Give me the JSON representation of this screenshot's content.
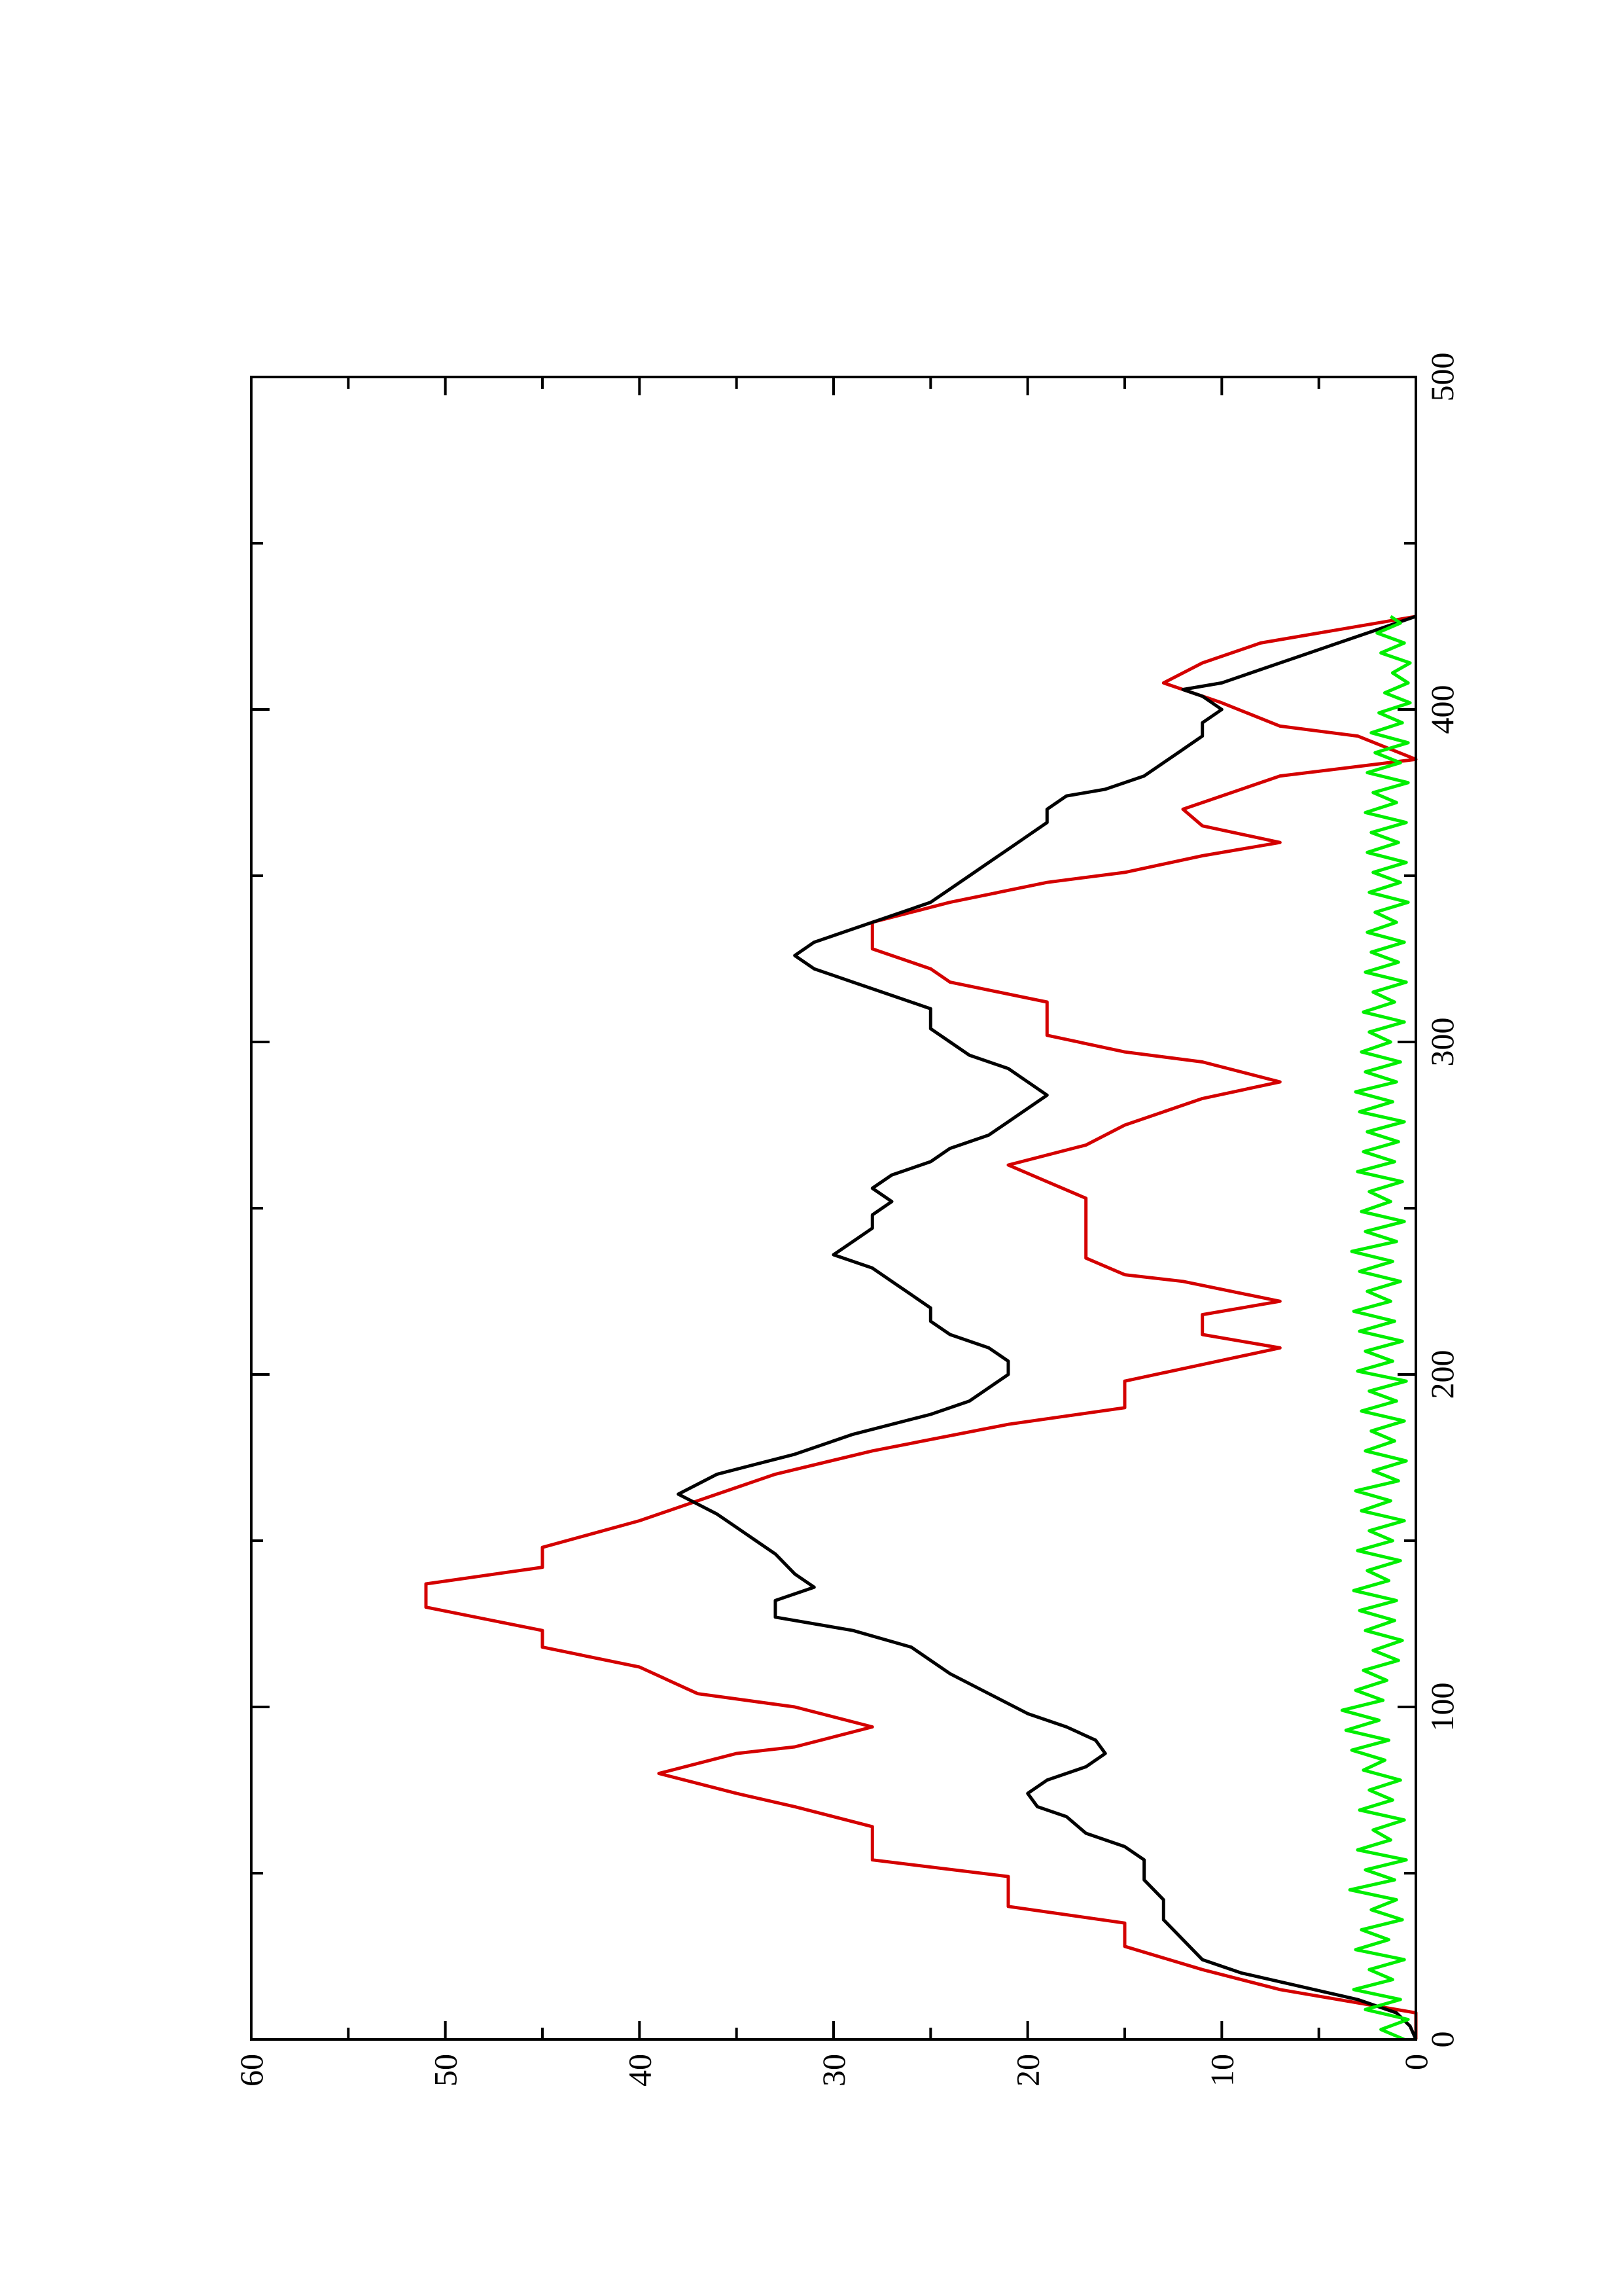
{
  "chart_data": {
    "type": "line",
    "title": "",
    "xlabel": "",
    "ylabel": "",
    "orientation": "rotated 90° counter-clockwise (landscape plot printed on portrait page)",
    "xlim": [
      0,
      500
    ],
    "ylim": [
      0,
      60
    ],
    "x_ticks": [
      0,
      100,
      200,
      300,
      400,
      500
    ],
    "x_tick_labels": [
      "0",
      "100",
      "200",
      "300",
      "400",
      "500"
    ],
    "x_minor_ticks": [
      50,
      150,
      250,
      350,
      450
    ],
    "y_ticks": [
      0,
      10,
      20,
      30,
      40,
      50,
      60
    ],
    "y_tick_labels": [
      "0",
      "10",
      "20",
      "30",
      "40",
      "50",
      "60"
    ],
    "y_minor_ticks": [
      5,
      15,
      25,
      35,
      45,
      55
    ],
    "grid": false,
    "legend": "none",
    "series": [
      {
        "color": "#d40000",
        "step": true,
        "points": [
          [
            0,
            0
          ],
          [
            8,
            0
          ],
          [
            15,
            7
          ],
          [
            21,
            11
          ],
          [
            28,
            15
          ],
          [
            35,
            15
          ],
          [
            40,
            21
          ],
          [
            49,
            21
          ],
          [
            54,
            28
          ],
          [
            64,
            28
          ],
          [
            70,
            32
          ],
          [
            74,
            35
          ],
          [
            80,
            39
          ],
          [
            86,
            35
          ],
          [
            88,
            32
          ],
          [
            94,
            28
          ],
          [
            100,
            32
          ],
          [
            104,
            37
          ],
          [
            112,
            40
          ],
          [
            118,
            45
          ],
          [
            123,
            45
          ],
          [
            130,
            51
          ],
          [
            137,
            51
          ],
          [
            142,
            45
          ],
          [
            148,
            45
          ],
          [
            156,
            40
          ],
          [
            162,
            37
          ],
          [
            170,
            33
          ],
          [
            177,
            28
          ],
          [
            185,
            21
          ],
          [
            190,
            15
          ],
          [
            198,
            15
          ],
          [
            203,
            11
          ],
          [
            208,
            7
          ],
          [
            212,
            11
          ],
          [
            218,
            11
          ],
          [
            222,
            7
          ],
          [
            228,
            12
          ],
          [
            230,
            15
          ],
          [
            235,
            17
          ],
          [
            253,
            17
          ],
          [
            258,
            19
          ],
          [
            263,
            21
          ],
          [
            269,
            17
          ],
          [
            275,
            15
          ],
          [
            283,
            11
          ],
          [
            288,
            7
          ],
          [
            294,
            11
          ],
          [
            297,
            15
          ],
          [
            302,
            19
          ],
          [
            312,
            19
          ],
          [
            318,
            24
          ],
          [
            322,
            25
          ],
          [
            328,
            28
          ],
          [
            336,
            28
          ],
          [
            342,
            24
          ],
          [
            348,
            19
          ],
          [
            351,
            15
          ],
          [
            356,
            11
          ],
          [
            360,
            7
          ],
          [
            365,
            11
          ],
          [
            370,
            12
          ],
          [
            374,
            10
          ],
          [
            380,
            7
          ],
          [
            385,
            0
          ],
          [
            392,
            3
          ],
          [
            395,
            7
          ],
          [
            402,
            10
          ],
          [
            408,
            13
          ],
          [
            414,
            11
          ],
          [
            420,
            8
          ],
          [
            428,
            0
          ]
        ]
      },
      {
        "color": "#000000",
        "step": false,
        "points": [
          [
            0,
            0
          ],
          [
            4,
            0.3
          ],
          [
            8,
            1
          ],
          [
            12,
            3
          ],
          [
            16,
            6
          ],
          [
            20,
            9
          ],
          [
            24,
            11
          ],
          [
            30,
            12
          ],
          [
            36,
            13
          ],
          [
            42,
            13
          ],
          [
            48,
            14
          ],
          [
            54,
            14
          ],
          [
            58,
            15
          ],
          [
            62,
            17
          ],
          [
            67,
            18
          ],
          [
            70,
            19.5
          ],
          [
            74,
            20
          ],
          [
            78,
            19
          ],
          [
            82,
            17
          ],
          [
            86,
            16
          ],
          [
            90,
            16.5
          ],
          [
            94,
            18
          ],
          [
            98,
            20
          ],
          [
            104,
            22
          ],
          [
            110,
            24
          ],
          [
            118,
            26
          ],
          [
            123,
            29
          ],
          [
            127,
            33
          ],
          [
            132,
            33
          ],
          [
            136,
            31
          ],
          [
            140,
            32
          ],
          [
            146,
            33
          ],
          [
            150,
            34
          ],
          [
            154,
            35
          ],
          [
            158,
            36
          ],
          [
            164,
            38
          ],
          [
            170,
            36
          ],
          [
            176,
            32
          ],
          [
            182,
            29
          ],
          [
            188,
            25
          ],
          [
            192,
            23
          ],
          [
            196,
            22
          ],
          [
            200,
            21
          ],
          [
            204,
            21
          ],
          [
            208,
            22
          ],
          [
            212,
            24
          ],
          [
            216,
            25
          ],
          [
            220,
            25
          ],
          [
            224,
            26
          ],
          [
            228,
            27
          ],
          [
            232,
            28
          ],
          [
            236,
            30
          ],
          [
            240,
            29
          ],
          [
            244,
            28
          ],
          [
            248,
            28
          ],
          [
            252,
            27
          ],
          [
            256,
            28
          ],
          [
            260,
            27
          ],
          [
            264,
            25
          ],
          [
            268,
            24
          ],
          [
            272,
            22
          ],
          [
            276,
            21
          ],
          [
            280,
            20
          ],
          [
            284,
            19
          ],
          [
            288,
            20
          ],
          [
            292,
            21
          ],
          [
            296,
            23
          ],
          [
            300,
            24
          ],
          [
            304,
            25
          ],
          [
            310,
            25
          ],
          [
            314,
            27
          ],
          [
            318,
            29
          ],
          [
            322,
            31
          ],
          [
            326,
            32
          ],
          [
            330,
            31
          ],
          [
            334,
            29
          ],
          [
            338,
            27
          ],
          [
            342,
            25
          ],
          [
            346,
            24
          ],
          [
            350,
            23
          ],
          [
            354,
            22
          ],
          [
            358,
            21
          ],
          [
            362,
            20
          ],
          [
            366,
            19
          ],
          [
            370,
            19
          ],
          [
            374,
            18
          ],
          [
            376,
            16
          ],
          [
            380,
            14
          ],
          [
            384,
            13
          ],
          [
            388,
            12
          ],
          [
            392,
            11
          ],
          [
            396,
            11
          ],
          [
            400,
            10
          ],
          [
            404,
            11
          ],
          [
            406,
            12
          ],
          [
            408,
            10
          ],
          [
            412,
            8
          ],
          [
            416,
            6
          ],
          [
            420,
            4
          ],
          [
            424,
            2
          ],
          [
            428,
            0
          ]
        ]
      },
      {
        "color": "#00ee00",
        "step": false,
        "points": [
          [
            0,
            0.6
          ],
          [
            3,
            1.8
          ],
          [
            6,
            0.4
          ],
          [
            9,
            2.6
          ],
          [
            12,
            0.8
          ],
          [
            15,
            3.2
          ],
          [
            18,
            1.2
          ],
          [
            21,
            2.4
          ],
          [
            24,
            0.6
          ],
          [
            27,
            3.1
          ],
          [
            30,
            1.4
          ],
          [
            33,
            2.8
          ],
          [
            36,
            0.7
          ],
          [
            39,
            2.3
          ],
          [
            42,
            1.0
          ],
          [
            45,
            3.4
          ],
          [
            48,
            1.1
          ],
          [
            51,
            2.6
          ],
          [
            54,
            0.5
          ],
          [
            57,
            3.0
          ],
          [
            60,
            1.3
          ],
          [
            63,
            2.2
          ],
          [
            66,
            0.6
          ],
          [
            69,
            2.9
          ],
          [
            72,
            1.2
          ],
          [
            75,
            2.4
          ],
          [
            78,
            0.8
          ],
          [
            81,
            2.7
          ],
          [
            84,
            1.6
          ],
          [
            87,
            3.3
          ],
          [
            90,
            1.4
          ],
          [
            93,
            3.6
          ],
          [
            96,
            1.9
          ],
          [
            99,
            3.8
          ],
          [
            102,
            1.7
          ],
          [
            105,
            3.1
          ],
          [
            108,
            1.5
          ],
          [
            111,
            2.7
          ],
          [
            114,
            0.9
          ],
          [
            117,
            2.2
          ],
          [
            120,
            0.7
          ],
          [
            123,
            2.6
          ],
          [
            126,
            1.1
          ],
          [
            129,
            2.9
          ],
          [
            132,
            1.0
          ],
          [
            135,
            3.2
          ],
          [
            138,
            1.4
          ],
          [
            141,
            2.5
          ],
          [
            144,
            0.8
          ],
          [
            147,
            3.0
          ],
          [
            150,
            1.2
          ],
          [
            153,
            2.4
          ],
          [
            156,
            0.6
          ],
          [
            159,
            2.8
          ],
          [
            162,
            1.3
          ],
          [
            165,
            3.1
          ],
          [
            168,
            0.9
          ],
          [
            171,
            2.2
          ],
          [
            174,
            0.5
          ],
          [
            177,
            2.6
          ],
          [
            180,
            1.1
          ],
          [
            183,
            2.3
          ],
          [
            186,
            0.6
          ],
          [
            189,
            2.8
          ],
          [
            192,
            1.0
          ],
          [
            195,
            2.4
          ],
          [
            198,
            0.5
          ],
          [
            201,
            3.0
          ],
          [
            204,
            1.2
          ],
          [
            207,
            2.6
          ],
          [
            210,
            0.7
          ],
          [
            213,
            2.9
          ],
          [
            216,
            1.1
          ],
          [
            219,
            3.2
          ],
          [
            222,
            1.3
          ],
          [
            225,
            2.5
          ],
          [
            228,
            0.8
          ],
          [
            231,
            2.9
          ],
          [
            234,
            1.2
          ],
          [
            237,
            3.3
          ],
          [
            240,
            1.0
          ],
          [
            243,
            2.6
          ],
          [
            246,
            0.6
          ],
          [
            249,
            2.8
          ],
          [
            252,
            1.3
          ],
          [
            255,
            2.4
          ],
          [
            258,
            0.7
          ],
          [
            261,
            3.0
          ],
          [
            264,
            1.1
          ],
          [
            267,
            2.7
          ],
          [
            270,
            0.9
          ],
          [
            273,
            2.5
          ],
          [
            276,
            0.6
          ],
          [
            279,
            2.9
          ],
          [
            282,
            1.2
          ],
          [
            285,
            3.1
          ],
          [
            288,
            1.0
          ],
          [
            291,
            2.6
          ],
          [
            294,
            0.8
          ],
          [
            297,
            2.8
          ],
          [
            300,
            1.3
          ],
          [
            303,
            2.4
          ],
          [
            306,
            0.6
          ],
          [
            309,
            2.7
          ],
          [
            312,
            1.1
          ],
          [
            315,
            2.2
          ],
          [
            318,
            0.5
          ],
          [
            321,
            2.6
          ],
          [
            324,
            0.9
          ],
          [
            327,
            2.3
          ],
          [
            330,
            0.6
          ],
          [
            333,
            2.5
          ],
          [
            336,
            1.0
          ],
          [
            339,
            2.1
          ],
          [
            342,
            0.4
          ],
          [
            345,
            2.4
          ],
          [
            348,
            0.8
          ],
          [
            351,
            2.2
          ],
          [
            354,
            0.5
          ],
          [
            357,
            2.5
          ],
          [
            360,
            0.9
          ],
          [
            363,
            2.3
          ],
          [
            366,
            0.5
          ],
          [
            369,
            2.6
          ],
          [
            372,
            1.0
          ],
          [
            375,
            2.2
          ],
          [
            378,
            0.4
          ],
          [
            381,
            2.5
          ],
          [
            384,
            0.8
          ],
          [
            387,
            2.1
          ],
          [
            390,
            0.4
          ],
          [
            393,
            2.3
          ],
          [
            396,
            0.7
          ],
          [
            399,
            1.9
          ],
          [
            402,
            0.3
          ],
          [
            405,
            1.6
          ],
          [
            408,
            0.4
          ],
          [
            411,
            1.2
          ],
          [
            414,
            0.3
          ],
          [
            417,
            1.8
          ],
          [
            420,
            0.6
          ],
          [
            423,
            2.0
          ],
          [
            426,
            0.8
          ],
          [
            428,
            1.3
          ]
        ]
      }
    ]
  }
}
